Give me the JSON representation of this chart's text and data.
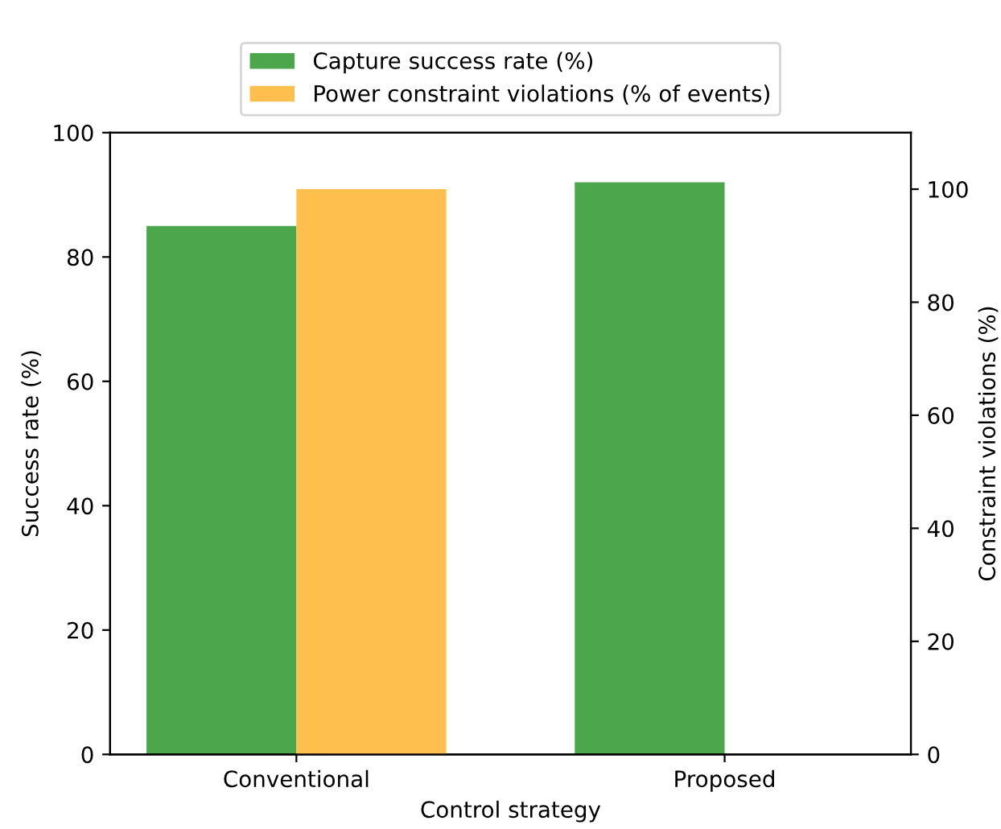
{
  "chart_data": {
    "type": "bar",
    "categories": [
      "Conventional",
      "Proposed"
    ],
    "xlabel": "Control strategy",
    "ylabel": "Success rate (%)",
    "y2label": "Constraint violations (%)",
    "series": [
      {
        "name": "Capture success rate (%)",
        "color": "#4ca64c",
        "values": [
          85,
          92
        ]
      },
      {
        "name": "Power constraint violations (% of events)",
        "color": "#ffbf4d",
        "values": [
          100,
          0
        ],
        "axis": "y2"
      }
    ],
    "ylim": [
      0,
      100
    ],
    "yticks": [
      0,
      20,
      40,
      60,
      80,
      100
    ],
    "y2lim": [
      0,
      110
    ],
    "y2ticks": [
      0,
      20,
      40,
      60,
      80,
      100
    ],
    "legend": "top",
    "grid": false
  }
}
